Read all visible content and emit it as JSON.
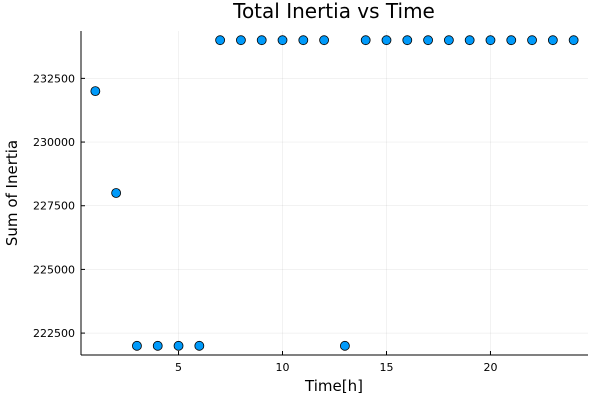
{
  "chart_data": {
    "type": "scatter",
    "title": "Total Inertia vs Time",
    "xlabel": "Time[h]",
    "ylabel": "Sum of Inertia",
    "x": [
      1,
      2,
      3,
      4,
      5,
      6,
      7,
      8,
      9,
      10,
      11,
      12,
      13,
      14,
      15,
      16,
      17,
      18,
      19,
      20,
      21,
      22,
      23,
      24
    ],
    "y": [
      232000,
      228000,
      222000,
      222000,
      222000,
      222000,
      234000,
      234000,
      234000,
      234000,
      234000,
      234000,
      222000,
      234000,
      234000,
      234000,
      234000,
      234000,
      234000,
      234000,
      234000,
      234000,
      234000,
      234000
    ],
    "xlim": [
      0.31,
      24.69
    ],
    "ylim": [
      221640,
      234360
    ],
    "xticks": [
      5,
      10,
      15,
      20
    ],
    "xtick_labels": [
      "5",
      "10",
      "15",
      "20"
    ],
    "yticks": [
      222500,
      225000,
      227500,
      230000,
      232500
    ],
    "ytick_labels": [
      "222500",
      "225000",
      "227500",
      "230000",
      "232500"
    ],
    "grid": true,
    "legend": "none",
    "marker_color": "#009AFA",
    "marker_edge_color": "#000000"
  }
}
